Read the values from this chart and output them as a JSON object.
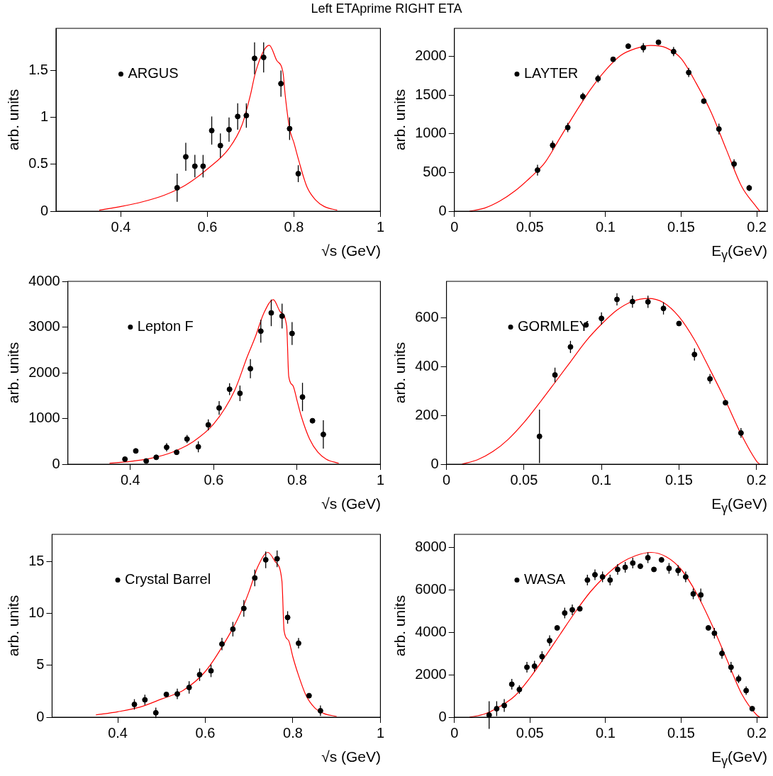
{
  "chart_data": [
    {
      "type": "scatter",
      "title": "Left ETAprime RIGHT ETA",
      "xlabel": "√s (GeV)",
      "ylabel": "arb. units",
      "xlim": [
        0.25,
        1
      ],
      "xticks": [
        0.4,
        0.6,
        0.8,
        1
      ],
      "ylim": [
        0,
        1.95
      ],
      "yticks": [
        0,
        0.5,
        1,
        1.5
      ],
      "legend": "top left",
      "series": [
        {
          "name": "ARGUS",
          "marker": "circle",
          "color": "#000000",
          "x": [
            0.53,
            0.55,
            0.571,
            0.59,
            0.61,
            0.63,
            0.65,
            0.67,
            0.69,
            0.709,
            0.73,
            0.77,
            0.79,
            0.81
          ],
          "values": [
            0.25,
            0.58,
            0.48,
            0.48,
            0.86,
            0.7,
            0.87,
            1.01,
            1.02,
            1.63,
            1.64,
            1.36,
            0.88,
            0.4
          ],
          "errors": [
            0.15,
            0.15,
            0.12,
            0.12,
            0.15,
            0.13,
            0.13,
            0.14,
            0.13,
            0.17,
            0.16,
            0.14,
            0.12,
            0.09
          ]
        },
        {
          "type": "line",
          "marker": "none",
          "color": "#ff0000",
          "x": [
            0.35,
            0.4,
            0.45,
            0.5,
            0.55,
            0.6,
            0.65,
            0.68,
            0.7,
            0.71,
            0.73,
            0.743,
            0.76,
            0.775,
            0.78,
            0.79,
            0.8,
            0.81,
            0.83,
            0.85,
            0.87,
            0.9
          ],
          "values": [
            0.01,
            0.05,
            0.1,
            0.17,
            0.28,
            0.45,
            0.67,
            0.92,
            1.25,
            1.46,
            1.71,
            1.77,
            1.61,
            1.47,
            1.23,
            0.88,
            0.73,
            0.56,
            0.26,
            0.12,
            0.05,
            0.01
          ]
        }
      ]
    },
    {
      "type": "scatter",
      "xlabel": "E$_{γ}$(GeV)",
      "ylabel": "arb. units",
      "xlim": [
        0,
        0.207
      ],
      "xticks": [
        0,
        0.05,
        0.1,
        0.15,
        0.2
      ],
      "ylim": [
        0,
        2360
      ],
      "yticks": [
        0,
        500,
        1000,
        1500,
        2000
      ],
      "legend": "top left",
      "series": [
        {
          "name": "LAYTER",
          "marker": "circle",
          "color": "#000000",
          "x": [
            0.055,
            0.065,
            0.075,
            0.085,
            0.095,
            0.105,
            0.115,
            0.125,
            0.135,
            0.145,
            0.155,
            0.165,
            0.175,
            0.185,
            0.195
          ],
          "values": [
            530,
            850,
            1080,
            1480,
            1710,
            1960,
            2130,
            2110,
            2180,
            2060,
            1790,
            1420,
            1060,
            610,
            300
          ],
          "errors": [
            70,
            60,
            60,
            50,
            50,
            30,
            30,
            60,
            30,
            60,
            60,
            30,
            70,
            60,
            40
          ]
        },
        {
          "type": "line",
          "marker": "none",
          "color": "#ff0000",
          "x": [
            0.01,
            0.02,
            0.03,
            0.04,
            0.05,
            0.06,
            0.07,
            0.08,
            0.09,
            0.1,
            0.11,
            0.12,
            0.13,
            0.14,
            0.15,
            0.16,
            0.17,
            0.18,
            0.19,
            0.2,
            0.202
          ],
          "values": [
            0,
            40,
            130,
            260,
            430,
            630,
            950,
            1270,
            1570,
            1820,
            2010,
            2100,
            2140,
            2110,
            1970,
            1650,
            1270,
            790,
            320,
            50,
            0
          ]
        }
      ]
    },
    {
      "type": "scatter",
      "xlabel": "√s (GeV)",
      "ylabel": "arb. units",
      "xlim": [
        0.25,
        1
      ],
      "xticks": [
        0.4,
        0.6,
        0.8,
        1
      ],
      "ylim": [
        0,
        4000
      ],
      "yticks": [
        0,
        1000,
        2000,
        3000,
        4000
      ],
      "legend": "top left",
      "series": [
        {
          "name": "Lepton F",
          "marker": "circle",
          "color": "#000000",
          "x": [
            0.387,
            0.413,
            0.438,
            0.462,
            0.487,
            0.511,
            0.536,
            0.563,
            0.587,
            0.613,
            0.638,
            0.663,
            0.688,
            0.713,
            0.738,
            0.764,
            0.788,
            0.813,
            0.837,
            0.863
          ],
          "values": [
            110,
            290,
            70,
            150,
            370,
            260,
            550,
            380,
            860,
            1230,
            1640,
            1550,
            2090,
            2910,
            3310,
            3240,
            2860,
            1470,
            950,
            650
          ],
          "errors": [
            40,
            40,
            40,
            40,
            90,
            40,
            90,
            120,
            120,
            150,
            130,
            170,
            210,
            250,
            290,
            270,
            250,
            310,
            null,
            310
          ]
        },
        {
          "type": "line",
          "marker": "none",
          "color": "#ff0000",
          "x": [
            0.35,
            0.4,
            0.45,
            0.5,
            0.55,
            0.6,
            0.65,
            0.68,
            0.7,
            0.72,
            0.743,
            0.76,
            0.775,
            0.78,
            0.79,
            0.8,
            0.81,
            0.83,
            0.85,
            0.87,
            0.9
          ],
          "values": [
            20,
            60,
            130,
            260,
            490,
            880,
            1610,
            2340,
            2790,
            3300,
            3600,
            3330,
            3020,
            1920,
            1720,
            1390,
            1050,
            550,
            260,
            110,
            20
          ]
        }
      ]
    },
    {
      "type": "scatter",
      "xlabel": "E$_{γ}$(GeV)",
      "ylabel": "arb. units",
      "xlim": [
        0,
        0.207
      ],
      "xticks": [
        0,
        0.05,
        0.1,
        0.15,
        0.2
      ],
      "ylim": [
        0,
        750
      ],
      "yticks": [
        0,
        200,
        400,
        600
      ],
      "legend": "top left",
      "series": [
        {
          "name": "GORMLEY",
          "marker": "circle",
          "color": "#000000",
          "x": [
            0.06,
            0.07,
            0.08,
            0.09,
            0.1,
            0.11,
            0.12,
            0.13,
            0.14,
            0.15,
            0.16,
            0.17,
            0.18,
            0.19
          ],
          "values": [
            114,
            366,
            481,
            571,
            598,
            676,
            667,
            666,
            639,
            577,
            450,
            350,
            252,
            128
          ],
          "errors": [
            110,
            30,
            25,
            5,
            25,
            25,
            25,
            25,
            25,
            5,
            25,
            20,
            5,
            20
          ]
        },
        {
          "type": "line",
          "marker": "none",
          "color": "#ff0000",
          "x": [
            0.01,
            0.02,
            0.03,
            0.04,
            0.05,
            0.06,
            0.07,
            0.08,
            0.09,
            0.1,
            0.11,
            0.12,
            0.13,
            0.14,
            0.15,
            0.16,
            0.17,
            0.18,
            0.19,
            0.2,
            0.202
          ],
          "values": [
            0,
            18,
            52,
            103,
            171,
            251,
            335,
            420,
            505,
            574,
            632,
            668,
            680,
            663,
            605,
            510,
            388,
            261,
            124,
            13,
            0
          ]
        }
      ]
    },
    {
      "type": "scatter",
      "xlabel": "√s (GeV)",
      "ylabel": "arb. units",
      "xlim": [
        0.25,
        1
      ],
      "xticks": [
        0.4,
        0.6,
        0.8,
        1
      ],
      "ylim": [
        0,
        17.6
      ],
      "yticks": [
        0,
        5,
        10,
        15
      ],
      "legend": "top left",
      "series": [
        {
          "name": "Crystal Barrel",
          "marker": "circle",
          "color": "#000000",
          "x": [
            0.438,
            0.462,
            0.487,
            0.511,
            0.536,
            0.563,
            0.587,
            0.613,
            0.638,
            0.663,
            0.688,
            0.713,
            0.738,
            0.764,
            0.788,
            0.813,
            0.837,
            0.863
          ],
          "values": [
            1.23,
            1.67,
            0.42,
            2.19,
            2.24,
            2.86,
            4.09,
            4.46,
            7.04,
            8.47,
            10.47,
            13.4,
            15.15,
            15.25,
            9.6,
            7.12,
            2.07,
            0.62
          ],
          "errors": [
            0.5,
            0.5,
            0.5,
            0.2,
            0.5,
            0.6,
            0.6,
            0.6,
            0.6,
            0.7,
            0.8,
            0.8,
            0.8,
            0.8,
            0.6,
            0.5,
            0.1,
            0.5
          ]
        },
        {
          "type": "line",
          "marker": "none",
          "color": "#ff0000",
          "x": [
            0.35,
            0.4,
            0.45,
            0.5,
            0.55,
            0.6,
            0.65,
            0.68,
            0.7,
            0.72,
            0.743,
            0.76,
            0.775,
            0.78,
            0.79,
            0.8,
            0.81,
            0.83,
            0.85,
            0.87,
            0.9
          ],
          "values": [
            0.22,
            0.52,
            0.96,
            1.75,
            2.6,
            4.4,
            7.6,
            10,
            12.1,
            14.5,
            15.86,
            14.95,
            13.1,
            8.3,
            7.4,
            5.8,
            4.4,
            2.1,
            0.9,
            0.37,
            0.07
          ]
        }
      ]
    },
    {
      "type": "scatter",
      "xlabel": "E$_{γ}$(GeV)",
      "ylabel": "arb. units",
      "xlim": [
        0,
        0.207
      ],
      "xticks": [
        0,
        0.05,
        0.1,
        0.15,
        0.2
      ],
      "ylim": [
        0,
        8600
      ],
      "yticks": [
        0,
        2000,
        4000,
        6000,
        8000
      ],
      "legend": "top left",
      "series": [
        {
          "name": "WASA",
          "marker": "circle",
          "color": "#000000",
          "x": [
            0.023,
            0.028,
            0.033,
            0.038,
            0.043,
            0.048,
            0.053,
            0.058,
            0.063,
            0.068,
            0.073,
            0.078,
            0.083,
            0.088,
            0.093,
            0.098,
            0.103,
            0.108,
            0.113,
            0.118,
            0.123,
            0.128,
            0.132,
            0.137,
            0.142,
            0.148,
            0.153,
            0.158,
            0.163,
            0.168,
            0.172,
            0.177,
            0.183,
            0.188,
            0.193,
            0.197
          ],
          "values": [
            100,
            400,
            550,
            1550,
            1300,
            2350,
            2400,
            2850,
            3600,
            4200,
            4900,
            5050,
            5100,
            6450,
            6700,
            6600,
            6450,
            6950,
            7050,
            7250,
            7100,
            7500,
            6950,
            7400,
            7000,
            6900,
            6600,
            5800,
            5750,
            4200,
            3950,
            3000,
            2350,
            1800,
            1250,
            400
          ],
          "errors": [
            650,
            350,
            300,
            250,
            200,
            250,
            250,
            250,
            250,
            50,
            250,
            250,
            50,
            250,
            250,
            250,
            250,
            250,
            250,
            250,
            50,
            250,
            50,
            50,
            250,
            250,
            250,
            250,
            300,
            50,
            250,
            250,
            250,
            200,
            200,
            50
          ]
        },
        {
          "type": "line",
          "marker": "none",
          "color": "#ff0000",
          "x": [
            0.01,
            0.02,
            0.03,
            0.04,
            0.05,
            0.06,
            0.07,
            0.08,
            0.09,
            0.1,
            0.11,
            0.12,
            0.13,
            0.14,
            0.15,
            0.16,
            0.17,
            0.18,
            0.19,
            0.2,
            0.202
          ],
          "values": [
            0,
            150,
            500,
            1000,
            1850,
            2850,
            3900,
            4950,
            5900,
            6650,
            7250,
            7600,
            7750,
            7550,
            6950,
            5850,
            4400,
            2750,
            1100,
            100,
            0
          ]
        }
      ]
    }
  ]
}
